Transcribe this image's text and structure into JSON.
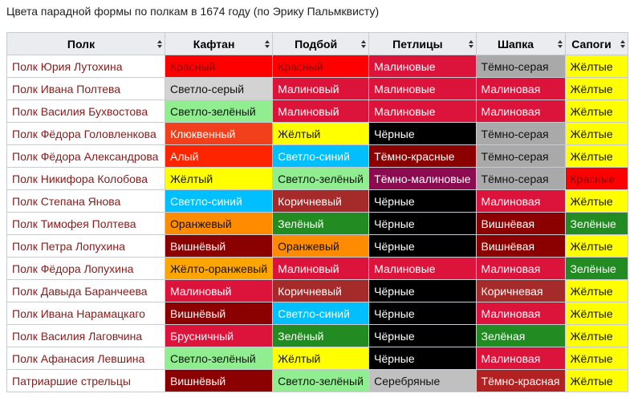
{
  "title": "Цвета парадной формы по полкам в 1674 году (по Эрику Пальмквисту)",
  "table": {
    "header": [
      "Полк",
      "Кафтан",
      "Подбой",
      "Петлицы",
      "Шапка",
      "Сапоги"
    ],
    "rows": [
      [
        "Полк Юрия Лутохина",
        "Красный",
        "Красный",
        "Малиновые",
        "Тёмно-серая",
        "Жёлтые"
      ],
      [
        "Полк Ивана Полтева",
        "Светло-серый",
        "Малиновый",
        "Малиновые",
        "Малиновая",
        "Жёлтые"
      ],
      [
        "Полк Василия Бухвостова",
        "Светло-зелёный",
        "Малиновый",
        "Малиновые",
        "Малиновая",
        "Жёлтые"
      ],
      [
        "Полк Фёдора Головленкова",
        "Клюквенный",
        "Жёлтый",
        "Чёрные",
        "Тёмно-серая",
        "Жёлтые"
      ],
      [
        "Полк Фёдора Александрова",
        "Алый",
        "Светло-синий",
        "Тёмно-красные",
        "Тёмно-серая",
        "Жёлтые"
      ],
      [
        "Полк Никифора Колобова",
        "Жёлтый",
        "Светло-зелёный",
        "Тёмно-малиновые",
        "Тёмно-серая",
        "Красные"
      ],
      [
        "Полк Степана Янова",
        "Светло-синий",
        "Коричневый",
        "Чёрные",
        "Малиновая",
        "Жёлтые"
      ],
      [
        "Полк Тимофея Полтева",
        "Оранжевый",
        "Зелёный",
        "Чёрные",
        "Вишнёвая",
        "Зелёные"
      ],
      [
        "Полк Петра Лопухина",
        "Вишнёвый",
        "Оранжевый",
        "Чёрные",
        "Вишнёвая",
        "Жёлтые"
      ],
      [
        "Полк Фёдора Лопухина",
        "Жёлто-оранжевый",
        "Малиновый",
        "Малиновые",
        "Малиновая",
        "Зелёные"
      ],
      [
        "Полк Давыда Баранчеева",
        "Малиновый",
        "Коричневый",
        "Чёрные",
        "Коричневая",
        "Жёлтые"
      ],
      [
        "Полк Ивана Нарамацкаго",
        "Вишнёвый",
        "Светло-синий",
        "Чёрные",
        "Малиновая",
        "Жёлтые"
      ],
      [
        "Полк Василия Лаговчина",
        "Брусничный",
        "Зелёный",
        "Чёрные",
        "Зелёная",
        "Жёлтые"
      ],
      [
        "Полк Афанасия Левшина",
        "Светло-зелёный",
        "Жёлтый",
        "Чёрные",
        "Малиновая",
        "Жёлтые"
      ],
      [
        "Патриаршие стрельцы",
        "Вишнёвый",
        "Светло-зелёный",
        "Серебряные",
        "Тёмно-красная",
        "Жёлтые"
      ]
    ],
    "cell_colors": [
      [
        "#ffffff",
        "#ff0000",
        "#ff0000",
        "#dc143c",
        "#a9a9a9",
        "#ffff00"
      ],
      [
        "#ffffff",
        "#d3d3d3",
        "#dc143c",
        "#dc143c",
        "#dc143c",
        "#ffff00"
      ],
      [
        "#ffffff",
        "#90ee90",
        "#dc143c",
        "#dc143c",
        "#dc143c",
        "#ffff00"
      ],
      [
        "#ffffff",
        "#f2401c",
        "#ffff00",
        "#000000",
        "#a9a9a9",
        "#ffff00"
      ],
      [
        "#ffffff",
        "#ff2400",
        "#00bfff",
        "#8b0000",
        "#a9a9a9",
        "#ffff00"
      ],
      [
        "#ffffff",
        "#ffff00",
        "#90ee90",
        "#8b0a50",
        "#a9a9a9",
        "#ff0000"
      ],
      [
        "#ffffff",
        "#00bfff",
        "#a52a2a",
        "#000000",
        "#dc143c",
        "#ffff00"
      ],
      [
        "#ffffff",
        "#ff8c00",
        "#228b22",
        "#000000",
        "#8b0000",
        "#228b22"
      ],
      [
        "#ffffff",
        "#8b0000",
        "#ff8c00",
        "#000000",
        "#8b0000",
        "#ffff00"
      ],
      [
        "#ffffff",
        "#ffa500",
        "#dc143c",
        "#dc143c",
        "#dc143c",
        "#228b22"
      ],
      [
        "#ffffff",
        "#dc143c",
        "#a52a2a",
        "#000000",
        "#a52a2a",
        "#ffff00"
      ],
      [
        "#ffffff",
        "#8b0000",
        "#00bfff",
        "#000000",
        "#dc143c",
        "#ffff00"
      ],
      [
        "#ffffff",
        "#dc143c",
        "#228b22",
        "#000000",
        "#228b22",
        "#ffff00"
      ],
      [
        "#ffffff",
        "#90ee90",
        "#ffff00",
        "#000000",
        "#dc143c",
        "#ffff00"
      ],
      [
        "#ffffff",
        "#8b0000",
        "#90ee90",
        "#c0c0c0",
        "#b22222",
        "#ffff00"
      ]
    ]
  }
}
